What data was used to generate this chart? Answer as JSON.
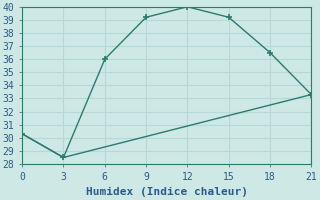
{
  "line1_x": [
    0,
    3,
    6,
    9,
    12,
    15,
    18,
    21
  ],
  "line1_y": [
    30.3,
    28.5,
    36.0,
    39.2,
    40.0,
    39.2,
    36.5,
    33.3
  ],
  "line2_x": [
    0,
    3,
    21
  ],
  "line2_y": [
    30.3,
    28.5,
    33.3
  ],
  "color": "#2d7a70",
  "xlabel": "Humidex (Indice chaleur)",
  "xlim": [
    0,
    21
  ],
  "ylim": [
    28,
    40
  ],
  "xticks": [
    0,
    3,
    6,
    9,
    12,
    15,
    18,
    21
  ],
  "yticks": [
    28,
    29,
    30,
    31,
    32,
    33,
    34,
    35,
    36,
    37,
    38,
    39,
    40
  ],
  "bg_color": "#cde8e5",
  "grid_color": "#b8d8d5",
  "font_color": "#2d5a8a",
  "tick_fontsize": 7,
  "xlabel_fontsize": 8
}
